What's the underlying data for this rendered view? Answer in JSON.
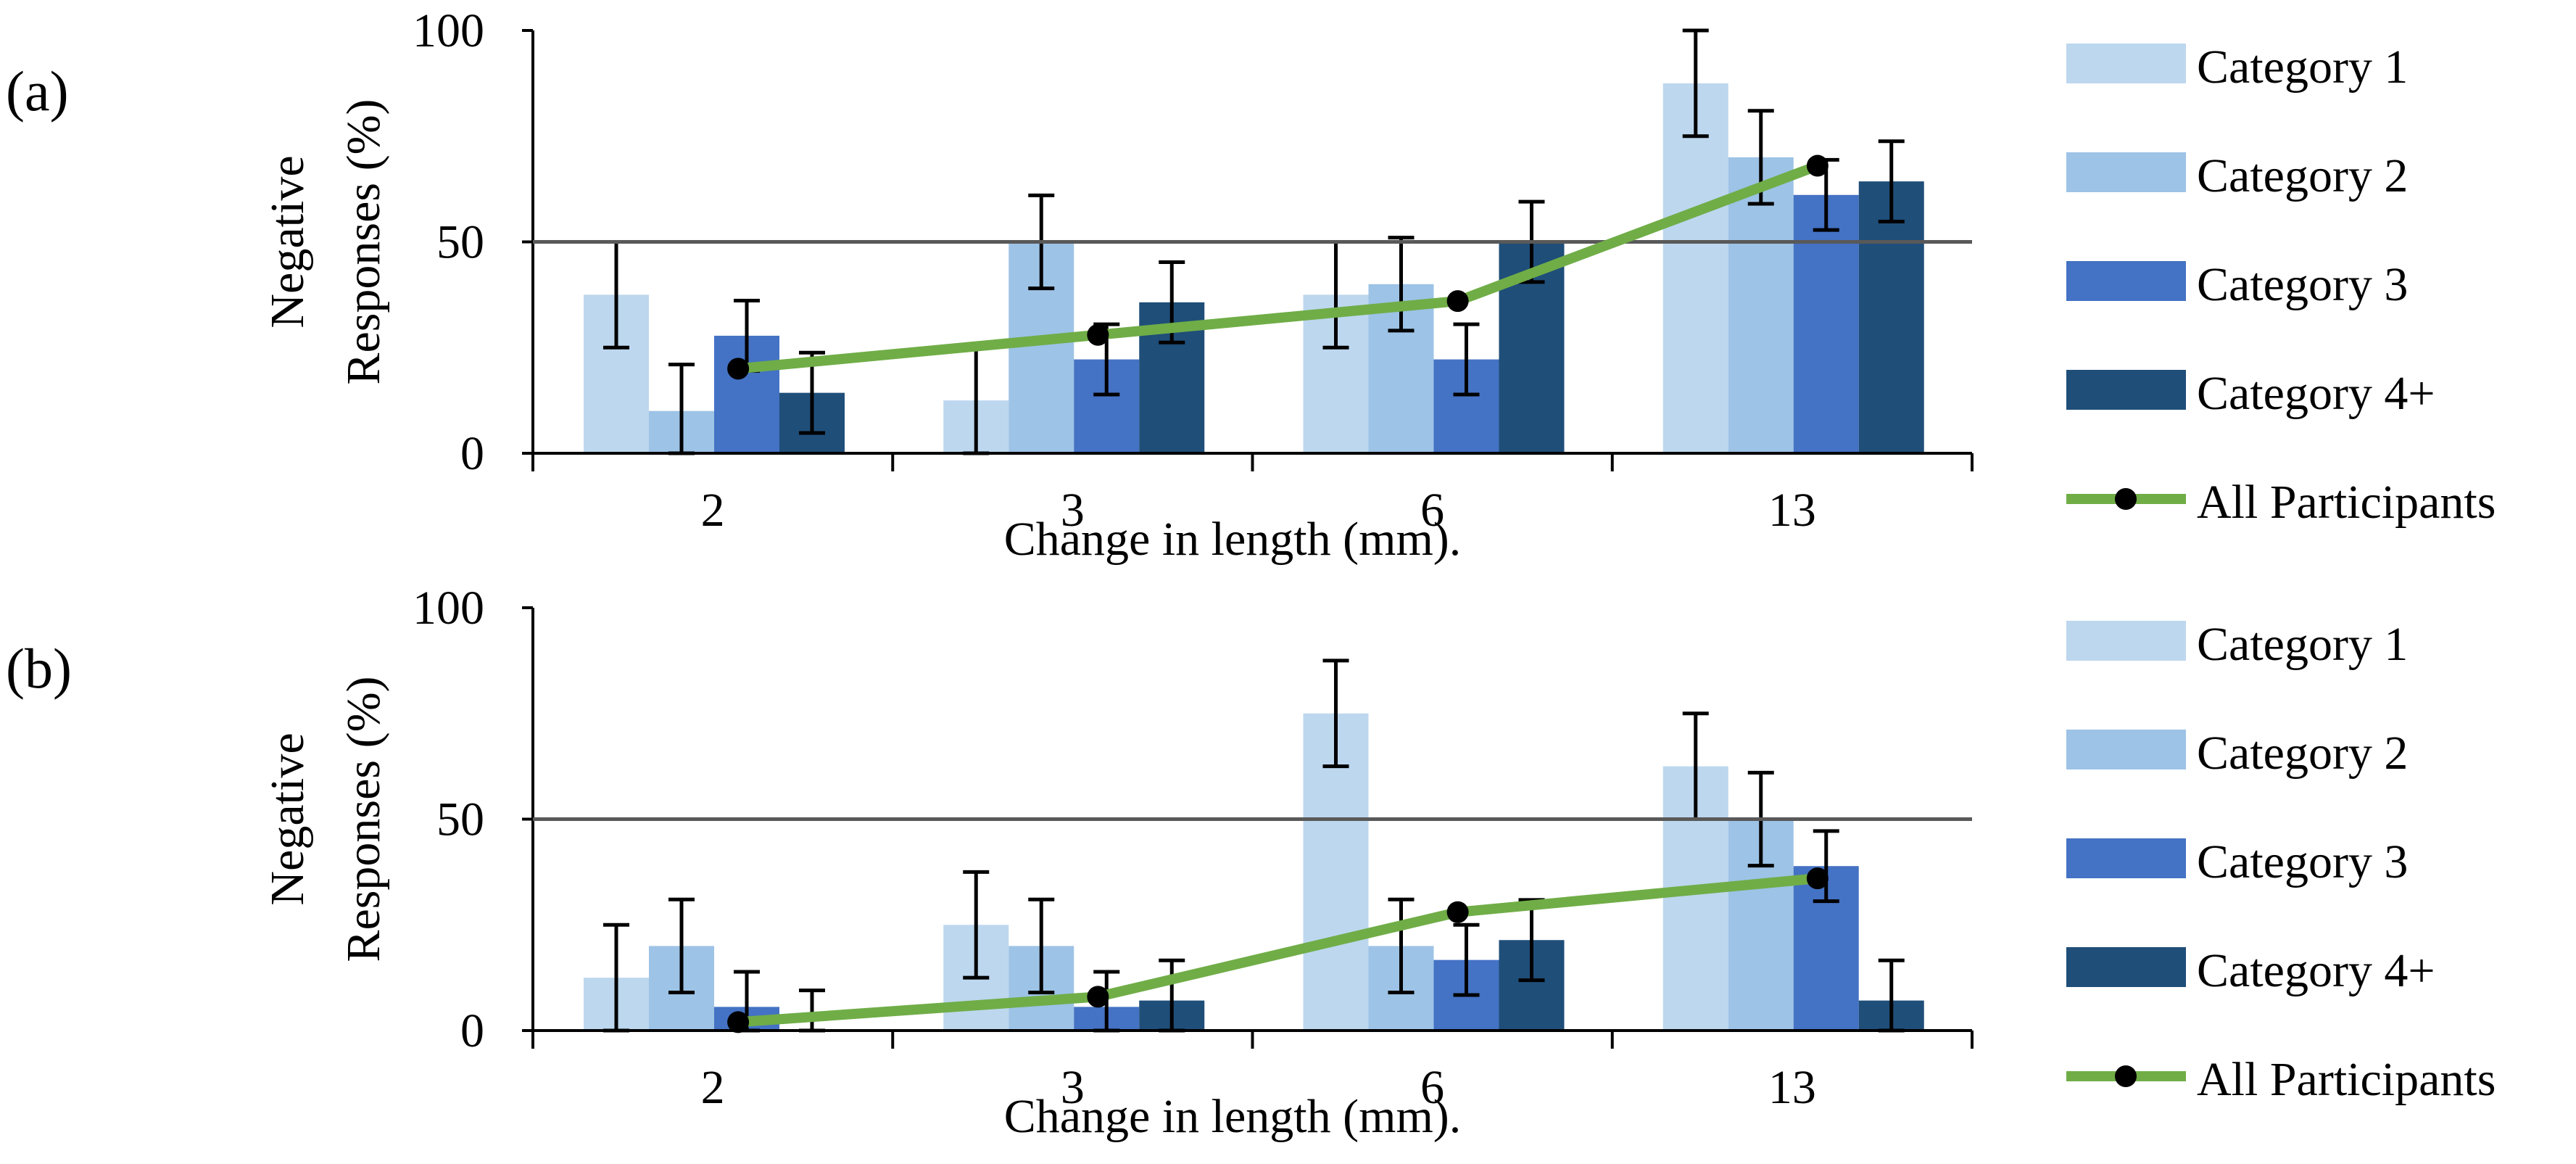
{
  "colors": {
    "cat1": "#bdd7ee",
    "cat2": "#9dc3e6",
    "cat3": "#4472c4",
    "cat4": "#1f4e79",
    "all": "#70ad47",
    "marker": "#000000",
    "reference": "#595959"
  },
  "chart_data": [
    {
      "type": "bar",
      "panel_label": "(a)",
      "categories": [
        "2",
        "3",
        "6",
        "13"
      ],
      "xlabel": "Change in length (mm).",
      "ylabel_lines": [
        "Negative",
        "Responses (%)"
      ],
      "ylim": [
        0,
        100
      ],
      "yticks": [
        "0",
        "50",
        "100"
      ],
      "reference_line": 50,
      "series": [
        {
          "name": "Category 1",
          "values": [
            37.5,
            12.5,
            37.5,
            87.5
          ],
          "errors": [
            12.5,
            12.5,
            12.5,
            12.5
          ]
        },
        {
          "name": "Category 2",
          "values": [
            10,
            50,
            40,
            70
          ],
          "errors": [
            11,
            11,
            11,
            11
          ]
        },
        {
          "name": "Category 3",
          "values": [
            27.8,
            22.2,
            22.2,
            61.1
          ],
          "errors": [
            8.3,
            8.3,
            8.3,
            8.3
          ]
        },
        {
          "name": "Category 4+",
          "values": [
            14.3,
            35.7,
            50,
            64.3
          ],
          "errors": [
            9.5,
            9.5,
            9.5,
            9.5
          ]
        }
      ],
      "line": {
        "name": "All Participants",
        "values": [
          20,
          28,
          36,
          68
        ]
      },
      "legend_position": "right"
    },
    {
      "type": "bar",
      "panel_label": "(b)",
      "categories": [
        "2",
        "3",
        "6",
        "13"
      ],
      "xlabel": "Change in length (mm).",
      "ylabel_lines": [
        "Negative",
        "Responses (%)"
      ],
      "ylim": [
        0,
        100
      ],
      "yticks": [
        "0",
        "50",
        "100"
      ],
      "reference_line": 50,
      "series": [
        {
          "name": "Category 1",
          "values": [
            12.5,
            25,
            75,
            62.5
          ],
          "errors": [
            12.5,
            12.5,
            12.5,
            12.5
          ]
        },
        {
          "name": "Category 2",
          "values": [
            20,
            20,
            20,
            50
          ],
          "errors": [
            11,
            11,
            11,
            11
          ]
        },
        {
          "name": "Category 3",
          "values": [
            5.6,
            5.6,
            16.7,
            38.9
          ],
          "errors": [
            8.3,
            8.3,
            8.3,
            8.3
          ]
        },
        {
          "name": "Category 4+",
          "values": [
            0,
            7.1,
            21.4,
            7.1
          ],
          "errors": [
            9.5,
            9.5,
            9.5,
            9.5
          ]
        }
      ],
      "line": {
        "name": "All Participants",
        "values": [
          2,
          8,
          28,
          36
        ]
      },
      "legend_position": "right"
    }
  ]
}
